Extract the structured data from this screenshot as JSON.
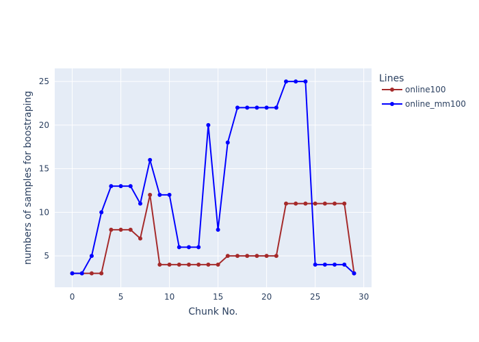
{
  "chart_data": {
    "type": "line",
    "xlabel": "Chunk No.",
    "ylabel": "numbers of samples for boostraping",
    "xlim": [
      -1.8,
      30.8
    ],
    "ylim": [
      1.4,
      26.5
    ],
    "x_ticks": [
      0,
      5,
      10,
      15,
      20,
      25,
      30
    ],
    "y_ticks": [
      5,
      10,
      15,
      20,
      25
    ],
    "grid": true,
    "legend": {
      "title": "Lines",
      "placement": "right"
    },
    "series": [
      {
        "name": "online100",
        "color": "#a52a2a",
        "x": [
          0,
          1,
          2,
          3,
          4,
          5,
          6,
          7,
          8,
          9,
          10,
          11,
          12,
          13,
          14,
          15,
          16,
          17,
          18,
          19,
          20,
          21,
          22,
          23,
          24,
          25,
          26,
          27,
          28,
          29
        ],
        "values": [
          3,
          3,
          3,
          3,
          8,
          8,
          8,
          7,
          12,
          4,
          4,
          4,
          4,
          4,
          4,
          4,
          5,
          5,
          5,
          5,
          5,
          5,
          11,
          11,
          11,
          11,
          11,
          11,
          11,
          3
        ]
      },
      {
        "name": "online_mm100",
        "color": "#0000ff",
        "x": [
          0,
          1,
          2,
          3,
          4,
          5,
          6,
          7,
          8,
          9,
          10,
          11,
          12,
          13,
          14,
          15,
          16,
          17,
          18,
          19,
          20,
          21,
          22,
          23,
          24,
          25,
          26,
          27,
          28,
          29
        ],
        "values": [
          3,
          3,
          5,
          10,
          13,
          13,
          13,
          11,
          16,
          12,
          12,
          6,
          6,
          6,
          20,
          8,
          18,
          22,
          22,
          22,
          22,
          22,
          25,
          25,
          25,
          4,
          4,
          4,
          4,
          3
        ]
      }
    ]
  }
}
